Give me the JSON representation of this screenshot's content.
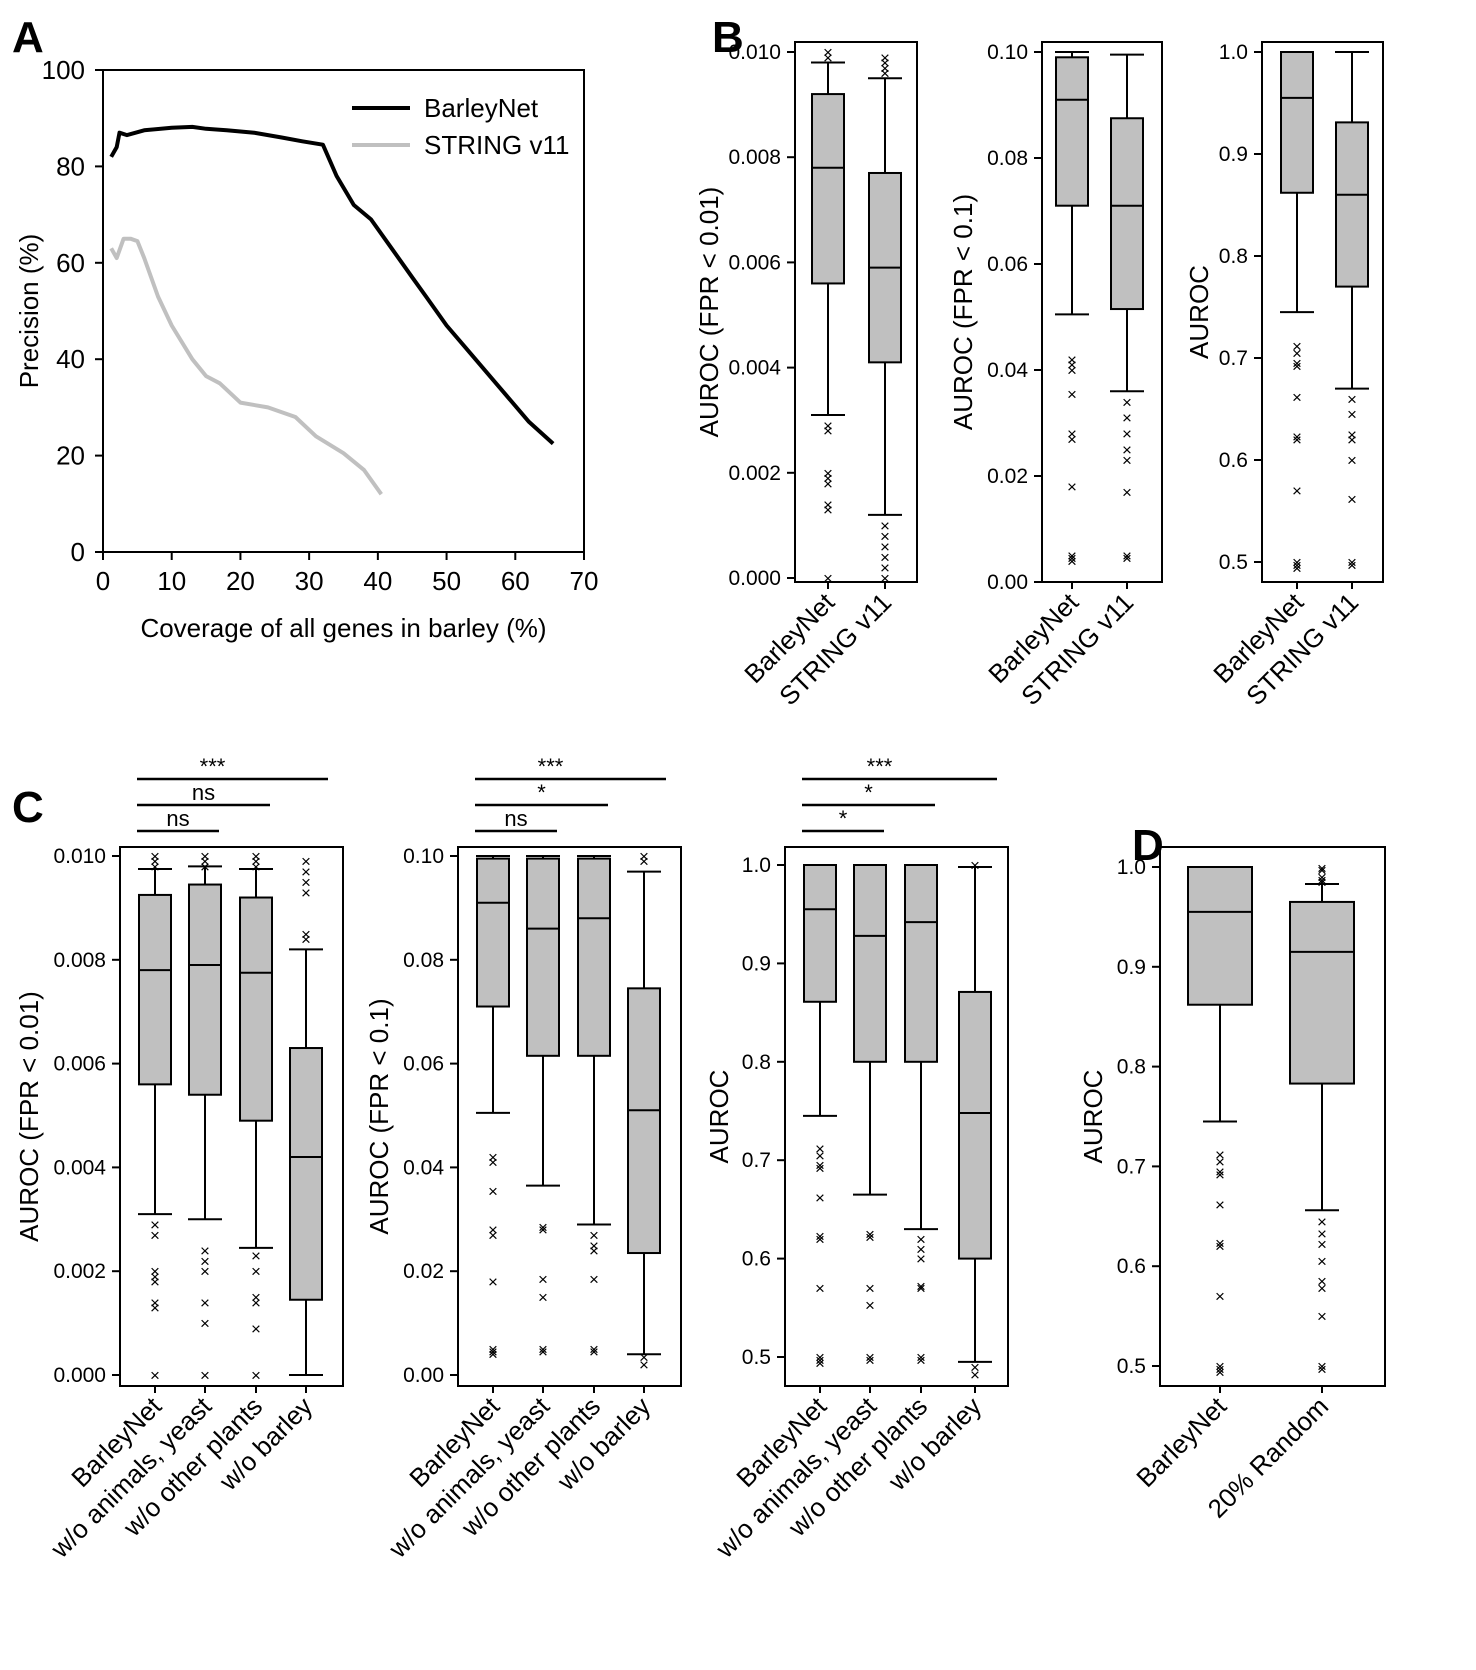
{
  "panels": {
    "A": "A",
    "B": "B",
    "C": "C",
    "D": "D"
  },
  "chart_data": [
    {
      "id": "A",
      "type": "line",
      "title": "",
      "xlabel": "Coverage of all genes in barley (%)",
      "ylabel": "Precision (%)",
      "xlim": [
        0,
        70
      ],
      "ylim": [
        0,
        100
      ],
      "xticks": [
        "0",
        "10",
        "20",
        "30",
        "40",
        "50",
        "60",
        "70"
      ],
      "yticks": [
        "0",
        "20",
        "40",
        "60",
        "80",
        "100"
      ],
      "legend_position": "top-right",
      "series": [
        {
          "name": "BarleyNet",
          "color": "#000000",
          "x": [
            1.2,
            2,
            2.4,
            3.5,
            6,
            10,
            13,
            15,
            18,
            22,
            26,
            29,
            32,
            34,
            36.5,
            39,
            42,
            45,
            47,
            50,
            53,
            56,
            59,
            62,
            65.5
          ],
          "y": [
            82,
            84,
            87,
            86.5,
            87.5,
            88,
            88.2,
            87.8,
            87.5,
            87,
            86,
            85.2,
            84.5,
            78,
            72,
            69,
            63,
            57,
            53,
            47,
            42,
            37,
            32,
            27,
            22.5
          ]
        },
        {
          "name": "STRING v11",
          "color": "#c0c0c0",
          "x": [
            1.2,
            2,
            3,
            4,
            5,
            6,
            8,
            10,
            13,
            15,
            17,
            20,
            24,
            28,
            31,
            35,
            38,
            40.5
          ],
          "y": [
            63,
            61,
            65,
            65,
            64.5,
            61,
            53,
            47,
            40,
            36.5,
            35,
            31,
            30,
            28,
            24,
            20.5,
            17,
            12
          ]
        }
      ]
    },
    {
      "id": "B1",
      "type": "box",
      "ylabel": "AUROC (FPR < 0.01)",
      "ylim": [
        0,
        0.0101
      ],
      "yticks": [
        "0.000",
        "0.002",
        "0.004",
        "0.006",
        "0.008",
        "0.010"
      ],
      "categories": [
        "BarleyNet",
        "STRING v11"
      ],
      "boxes": [
        {
          "q1": 0.0056,
          "median": 0.0078,
          "q3": 0.0092,
          "whisker_low": 0.0031,
          "whisker_high": 0.0098,
          "fliers": [
            0.0029,
            0.0028,
            0.002,
            0.0019,
            0.0018,
            0.0014,
            0.0013,
            0.0,
            0.01,
            0.0099
          ]
        },
        {
          "q1": 0.0041,
          "median": 0.0059,
          "q3": 0.0077,
          "whisker_low": 0.0012,
          "whisker_high": 0.0095,
          "fliers": [
            0.001,
            0.0008,
            0.0006,
            0.0004,
            0.0002,
            0.0,
            0.0096,
            0.0097,
            0.0098,
            0.0099
          ]
        }
      ]
    },
    {
      "id": "B2",
      "type": "box",
      "ylabel": "AUROC (FPR < 0.1)",
      "ylim": [
        0,
        0.101
      ],
      "yticks": [
        "0.00",
        "0.02",
        "0.04",
        "0.06",
        "0.08",
        "0.10"
      ],
      "categories": [
        "BarleyNet",
        "STRING v11"
      ],
      "boxes": [
        {
          "q1": 0.071,
          "median": 0.091,
          "q3": 0.099,
          "whisker_low": 0.0505,
          "whisker_high": 0.1,
          "fliers": [
            0.042,
            0.041,
            0.04,
            0.0355,
            0.028,
            0.027,
            0.018,
            0.005,
            0.0045,
            0.004
          ]
        },
        {
          "q1": 0.0515,
          "median": 0.071,
          "q3": 0.0875,
          "whisker_low": 0.036,
          "whisker_high": 0.0995,
          "fliers": [
            0.034,
            0.031,
            0.028,
            0.025,
            0.023,
            0.017,
            0.005,
            0.0045
          ]
        }
      ]
    },
    {
      "id": "B3",
      "type": "box",
      "ylabel": "AUROC",
      "ylim": [
        0.48,
        1.005
      ],
      "yticks": [
        "0.5",
        "0.6",
        "0.7",
        "0.8",
        "0.9",
        "1.0"
      ],
      "categories": [
        "BarleyNet",
        "STRING v11"
      ],
      "boxes": [
        {
          "q1": 0.862,
          "median": 0.955,
          "q3": 1.0,
          "whisker_low": 0.745,
          "whisker_high": 1.0,
          "fliers": [
            0.712,
            0.705,
            0.695,
            0.692,
            0.662,
            0.623,
            0.62,
            0.57,
            0.5,
            0.497,
            0.494
          ]
        },
        {
          "q1": 0.77,
          "median": 0.86,
          "q3": 0.931,
          "whisker_low": 0.67,
          "whisker_high": 1.0,
          "fliers": [
            0.66,
            0.645,
            0.625,
            0.62,
            0.6,
            0.562,
            0.5,
            0.497
          ]
        }
      ]
    },
    {
      "id": "C1",
      "type": "box",
      "ylabel": "AUROC (FPR < 0.01)",
      "ylim": [
        -0.0002,
        0.0102
      ],
      "yticks": [
        "0.000",
        "0.002",
        "0.004",
        "0.006",
        "0.008",
        "0.010"
      ],
      "categories": [
        "BarleyNet",
        "w/o animals, yeast",
        "w/o other plants",
        "w/o barley"
      ],
      "significance": [
        {
          "from": 0,
          "to": 1,
          "label": "ns"
        },
        {
          "from": 0,
          "to": 2,
          "label": "ns"
        },
        {
          "from": 0,
          "to": 3,
          "label": "***"
        }
      ],
      "boxes": [
        {
          "q1": 0.0056,
          "median": 0.0078,
          "q3": 0.00925,
          "whisker_low": 0.0031,
          "whisker_high": 0.00975,
          "fliers": [
            0.0029,
            0.0027,
            0.002,
            0.0019,
            0.0018,
            0.0014,
            0.0013,
            0.0,
            0.01,
            0.0099,
            0.0098
          ]
        },
        {
          "q1": 0.0054,
          "median": 0.0079,
          "q3": 0.00945,
          "whisker_low": 0.003,
          "whisker_high": 0.0098,
          "fliers": [
            0.0024,
            0.0022,
            0.002,
            0.0014,
            0.001,
            0.0,
            0.01,
            0.0099,
            0.0098
          ]
        },
        {
          "q1": 0.0049,
          "median": 0.00775,
          "q3": 0.0092,
          "whisker_low": 0.00245,
          "whisker_high": 0.00975,
          "fliers": [
            0.0023,
            0.002,
            0.0015,
            0.0014,
            0.0009,
            0.0,
            0.01,
            0.0099,
            0.0098
          ]
        },
        {
          "q1": 0.00145,
          "median": 0.0042,
          "q3": 0.0063,
          "whisker_low": 0.0,
          "whisker_high": 0.0082,
          "fliers": [
            0.0085,
            0.0084,
            0.0093,
            0.0095,
            0.0097,
            0.0099
          ]
        }
      ]
    },
    {
      "id": "C2",
      "type": "box",
      "ylabel": "AUROC (FPR < 0.1)",
      "ylim": [
        -0.002,
        0.102
      ],
      "yticks": [
        "0.00",
        "0.02",
        "0.04",
        "0.06",
        "0.08",
        "0.10"
      ],
      "categories": [
        "BarleyNet",
        "w/o animals, yeast",
        "w/o other plants",
        "w/o barley"
      ],
      "significance": [
        {
          "from": 0,
          "to": 1,
          "label": "ns"
        },
        {
          "from": 0,
          "to": 2,
          "label": "*"
        },
        {
          "from": 0,
          "to": 3,
          "label": "***"
        }
      ],
      "boxes": [
        {
          "q1": 0.071,
          "median": 0.091,
          "q3": 0.0995,
          "whisker_low": 0.0505,
          "whisker_high": 0.1,
          "fliers": [
            0.042,
            0.041,
            0.0355,
            0.028,
            0.027,
            0.018,
            0.005,
            0.0045,
            0.004
          ]
        },
        {
          "q1": 0.0615,
          "median": 0.086,
          "q3": 0.0995,
          "whisker_low": 0.0365,
          "whisker_high": 0.1,
          "fliers": [
            0.0285,
            0.028,
            0.0185,
            0.015,
            0.005,
            0.0045
          ]
        },
        {
          "q1": 0.0615,
          "median": 0.088,
          "q3": 0.0995,
          "whisker_low": 0.029,
          "whisker_high": 0.1,
          "fliers": [
            0.027,
            0.025,
            0.024,
            0.0185,
            0.005,
            0.0045
          ]
        },
        {
          "q1": 0.0235,
          "median": 0.051,
          "q3": 0.0745,
          "whisker_low": 0.004,
          "whisker_high": 0.097,
          "fliers": [
            0.1,
            0.099,
            0.0035,
            0.002
          ]
        }
      ]
    },
    {
      "id": "C3",
      "type": "box",
      "ylabel": "AUROC",
      "ylim": [
        0.475,
        1.012
      ],
      "yticks": [
        "0.5",
        "0.6",
        "0.7",
        "0.8",
        "0.9",
        "1.0"
      ],
      "categories": [
        "BarleyNet",
        "w/o animals, yeast",
        "w/o other plants",
        "w/o barley"
      ],
      "significance": [
        {
          "from": 0,
          "to": 1,
          "label": "*"
        },
        {
          "from": 0,
          "to": 2,
          "label": "*"
        },
        {
          "from": 0,
          "to": 3,
          "label": "***"
        }
      ],
      "boxes": [
        {
          "q1": 0.861,
          "median": 0.955,
          "q3": 1.0,
          "whisker_low": 0.745,
          "whisker_high": 1.0,
          "fliers": [
            0.712,
            0.705,
            0.695,
            0.692,
            0.662,
            0.623,
            0.62,
            0.57,
            0.5,
            0.497,
            0.494
          ]
        },
        {
          "q1": 0.8,
          "median": 0.928,
          "q3": 1.0,
          "whisker_low": 0.665,
          "whisker_high": 1.0,
          "fliers": [
            0.625,
            0.622,
            0.57,
            0.553,
            0.5,
            0.497
          ]
        },
        {
          "q1": 0.8,
          "median": 0.942,
          "q3": 1.0,
          "whisker_low": 0.63,
          "whisker_high": 1.0,
          "fliers": [
            0.62,
            0.61,
            0.6,
            0.572,
            0.57,
            0.5,
            0.497
          ]
        },
        {
          "q1": 0.6,
          "median": 0.748,
          "q3": 0.871,
          "whisker_low": 0.495,
          "whisker_high": 0.998,
          "fliers": [
            1.0,
            0.49,
            0.482
          ]
        }
      ]
    },
    {
      "id": "D",
      "type": "box",
      "ylabel": "AUROC",
      "ylim": [
        0.48,
        1.015
      ],
      "yticks": [
        "0.5",
        "0.6",
        "0.7",
        "0.8",
        "0.9",
        "1.0"
      ],
      "categories": [
        "BarleyNet",
        "20% Random"
      ],
      "boxes": [
        {
          "q1": 0.862,
          "median": 0.955,
          "q3": 1.0,
          "whisker_low": 0.745,
          "whisker_high": 1.0,
          "fliers": [
            0.712,
            0.705,
            0.695,
            0.692,
            0.662,
            0.623,
            0.62,
            0.57,
            0.5,
            0.497,
            0.494
          ]
        },
        {
          "q1": 0.783,
          "median": 0.915,
          "q3": 0.965,
          "whisker_low": 0.656,
          "whisker_high": 0.983,
          "fliers": [
            0.999,
            0.997,
            0.99,
            0.987,
            0.985,
            0.645,
            0.633,
            0.622,
            0.605,
            0.585,
            0.578,
            0.55,
            0.5,
            0.497
          ]
        }
      ]
    }
  ]
}
